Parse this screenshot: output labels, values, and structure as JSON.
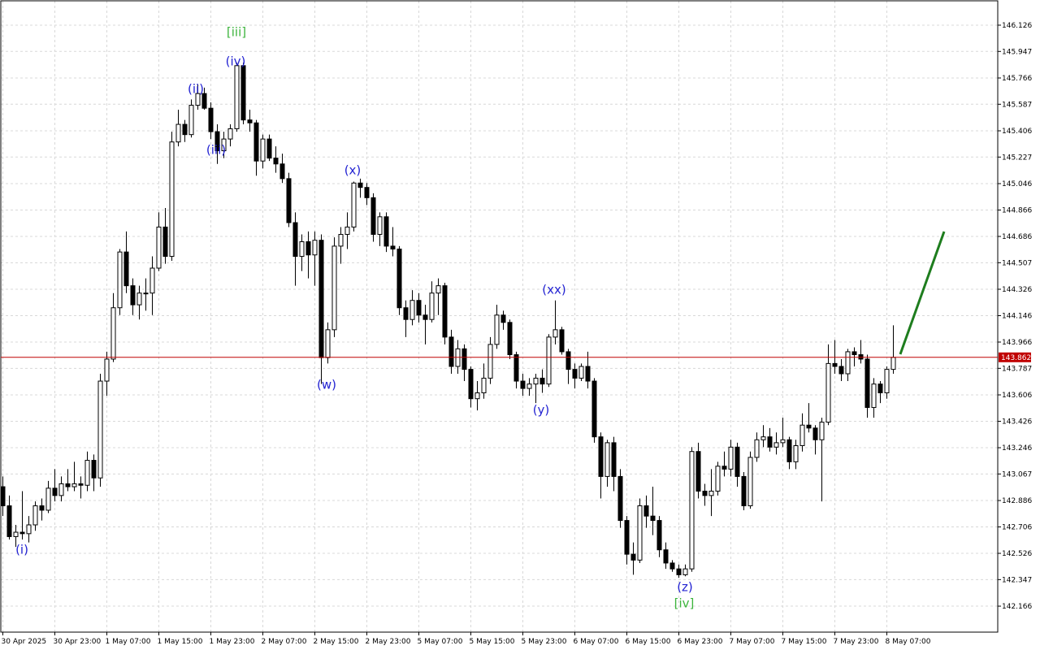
{
  "chart_data": {
    "type": "candlestick",
    "categories": [
      "30 Apr 2025",
      null,
      null,
      null,
      null,
      null,
      null,
      null,
      "30 Apr 23:00",
      null,
      null,
      null,
      null,
      null,
      null,
      null,
      "1 May 07:00",
      null,
      null,
      null,
      null,
      null,
      null,
      null,
      "1 May 15:00",
      null,
      null,
      null,
      null,
      null,
      null,
      null,
      "1 May 23:00",
      null,
      null,
      null,
      null,
      null,
      null,
      null,
      "2 May 07:00",
      null,
      null,
      null,
      null,
      null,
      null,
      null,
      "2 May 15:00",
      null,
      null,
      null,
      null,
      null,
      null,
      null,
      "2 May 23:00",
      null,
      null,
      null,
      null,
      null,
      null,
      null,
      "5 May 07:00",
      null,
      null,
      null,
      null,
      null,
      null,
      null,
      "5 May 15:00",
      null,
      null,
      null,
      null,
      null,
      null,
      null,
      "5 May 23:00",
      null,
      null,
      null,
      null,
      null,
      null,
      null,
      "6 May 07:00",
      null,
      null,
      null,
      null,
      null,
      null,
      null,
      "6 May 15:00",
      null,
      null,
      null,
      null,
      null,
      null,
      null,
      "6 May 23:00",
      null,
      null,
      null,
      null,
      null,
      null,
      null,
      "7 May 07:00",
      null,
      null,
      null,
      null,
      null,
      null,
      null,
      "7 May 15:00",
      null,
      null,
      null,
      null,
      null,
      null,
      null,
      "7 May 23:00",
      null,
      null,
      null,
      null,
      null,
      null,
      null,
      "8 May 07:00",
      null
    ],
    "open": [
      142.98,
      142.85,
      142.64,
      142.67,
      142.66,
      142.72,
      142.85,
      142.82,
      142.97,
      142.92,
      143.0,
      142.98,
      143.0,
      142.99,
      143.16,
      143.04,
      143.7,
      143.85,
      144.2,
      144.58,
      144.35,
      144.22,
      144.3,
      144.3,
      144.47,
      144.75,
      144.55,
      145.33,
      145.45,
      145.38,
      145.58,
      145.66,
      145.56,
      145.4,
      145.27,
      145.35,
      145.42,
      145.85,
      145.48,
      145.46,
      145.2,
      145.35,
      145.22,
      145.18,
      145.08,
      144.78,
      144.55,
      144.65,
      144.56,
      144.66,
      143.86,
      144.05,
      144.62,
      144.7,
      144.75,
      145.05,
      145.02,
      144.95,
      144.7,
      144.82,
      144.62,
      144.6,
      144.2,
      144.12,
      144.25,
      144.15,
      144.12,
      144.3,
      144.35,
      144.0,
      143.8,
      143.92,
      143.78,
      143.58,
      143.62,
      143.72,
      143.95,
      144.15,
      144.1,
      143.88,
      143.7,
      143.65,
      143.68,
      143.72,
      143.68,
      144.0,
      144.05,
      143.9,
      143.78,
      143.72,
      143.8,
      143.7,
      143.32,
      143.05,
      143.28,
      143.05,
      142.75,
      142.52,
      142.48,
      142.85,
      142.78,
      142.75,
      142.55,
      142.46,
      142.42,
      142.38,
      142.42,
      143.22,
      142.95,
      142.92,
      142.95,
      143.12,
      143.1,
      143.25,
      143.05,
      142.85,
      143.18,
      143.3,
      143.32,
      143.25,
      143.28,
      143.3,
      143.15,
      143.26,
      143.4,
      143.38,
      143.3,
      143.42,
      143.82,
      143.8,
      143.75,
      143.9,
      143.88,
      143.85,
      143.52,
      143.68,
      143.62,
      143.78
    ],
    "high": [
      143.05,
      142.92,
      142.72,
      142.95,
      142.78,
      142.88,
      142.9,
      143.02,
      143.1,
      143.05,
      143.1,
      143.15,
      143.05,
      143.22,
      143.2,
      143.75,
      143.9,
      144.3,
      144.6,
      144.72,
      144.4,
      144.35,
      144.4,
      144.55,
      144.85,
      144.88,
      145.4,
      145.55,
      145.48,
      145.62,
      145.72,
      145.7,
      145.6,
      145.45,
      145.4,
      145.45,
      145.87,
      145.87,
      145.55,
      145.48,
      145.38,
      145.38,
      145.3,
      145.25,
      145.12,
      144.85,
      144.7,
      144.72,
      144.72,
      144.7,
      144.1,
      144.68,
      144.75,
      144.85,
      145.06,
      145.08,
      145.05,
      144.98,
      144.85,
      144.85,
      144.75,
      144.62,
      144.25,
      144.32,
      144.3,
      144.22,
      144.38,
      144.4,
      144.37,
      144.05,
      143.98,
      143.95,
      143.8,
      143.7,
      143.82,
      144.0,
      144.22,
      144.18,
      144.12,
      143.9,
      143.75,
      143.72,
      143.75,
      143.78,
      144.02,
      144.25,
      144.07,
      143.92,
      143.82,
      143.82,
      143.9,
      143.72,
      143.35,
      143.3,
      143.32,
      143.1,
      142.78,
      142.6,
      142.9,
      142.92,
      142.98,
      142.78,
      142.6,
      142.48,
      142.45,
      142.45,
      143.25,
      143.28,
      143.0,
      143.1,
      143.15,
      143.22,
      143.3,
      143.28,
      143.08,
      143.22,
      143.35,
      143.4,
      143.38,
      143.35,
      143.45,
      143.32,
      143.3,
      143.48,
      143.55,
      143.4,
      143.45,
      143.95,
      143.98,
      143.85,
      143.92,
      143.93,
      143.98,
      143.88,
      143.72,
      143.7,
      143.8,
      144.08
    ],
    "low": [
      142.78,
      142.62,
      142.57,
      142.62,
      142.6,
      142.68,
      142.75,
      142.8,
      142.88,
      142.88,
      142.95,
      142.95,
      142.9,
      142.95,
      142.95,
      142.98,
      143.6,
      143.83,
      144.15,
      144.3,
      144.15,
      144.12,
      144.18,
      144.15,
      144.45,
      144.5,
      144.52,
      145.3,
      145.33,
      145.36,
      145.55,
      145.55,
      145.35,
      145.18,
      145.22,
      145.3,
      145.4,
      145.45,
      145.4,
      145.1,
      145.15,
      145.2,
      145.12,
      145.05,
      144.75,
      144.35,
      144.45,
      144.4,
      144.35,
      143.68,
      143.82,
      144.0,
      144.5,
      144.6,
      144.72,
      144.95,
      144.9,
      144.65,
      144.62,
      144.58,
      144.55,
      144.15,
      144.0,
      144.08,
      144.1,
      143.95,
      144.1,
      144.15,
      143.95,
      143.75,
      143.75,
      143.7,
      143.52,
      143.5,
      143.58,
      143.68,
      143.92,
      144.05,
      143.85,
      143.65,
      143.6,
      143.6,
      143.55,
      143.62,
      143.66,
      143.95,
      143.88,
      143.68,
      143.65,
      143.7,
      143.65,
      143.28,
      142.9,
      142.98,
      142.95,
      142.7,
      142.45,
      142.38,
      142.46,
      142.7,
      142.65,
      142.5,
      142.42,
      142.4,
      142.36,
      142.37,
      142.4,
      142.9,
      142.85,
      142.78,
      142.92,
      143.05,
      143.05,
      142.98,
      142.82,
      142.83,
      143.15,
      143.25,
      143.22,
      143.2,
      143.25,
      143.1,
      143.1,
      143.22,
      143.35,
      143.2,
      142.88,
      143.4,
      143.75,
      143.7,
      143.7,
      143.8,
      143.82,
      143.45,
      143.45,
      143.55,
      143.58,
      143.75
    ],
    "close": [
      142.85,
      142.64,
      142.67,
      142.66,
      142.72,
      142.85,
      142.82,
      142.97,
      142.92,
      143.0,
      142.98,
      143.0,
      142.99,
      143.16,
      143.04,
      143.7,
      143.85,
      144.2,
      144.58,
      144.35,
      144.22,
      144.3,
      144.3,
      144.47,
      144.75,
      144.55,
      145.33,
      145.45,
      145.38,
      145.58,
      145.66,
      145.56,
      145.4,
      145.27,
      145.35,
      145.42,
      145.85,
      145.48,
      145.46,
      145.2,
      145.35,
      145.22,
      145.18,
      145.08,
      144.78,
      144.55,
      144.65,
      144.56,
      144.66,
      143.86,
      144.05,
      144.62,
      144.7,
      144.75,
      145.05,
      145.02,
      144.95,
      144.7,
      144.82,
      144.62,
      144.6,
      144.2,
      144.12,
      144.25,
      144.15,
      144.12,
      144.3,
      144.35,
      144.0,
      143.8,
      143.92,
      143.78,
      143.58,
      143.62,
      143.72,
      143.95,
      144.15,
      144.1,
      143.88,
      143.7,
      143.65,
      143.68,
      143.72,
      143.68,
      144.0,
      144.05,
      143.9,
      143.78,
      143.72,
      143.8,
      143.7,
      143.32,
      143.05,
      143.28,
      143.05,
      142.75,
      142.52,
      142.48,
      142.85,
      142.78,
      142.75,
      142.55,
      142.46,
      142.42,
      142.38,
      142.42,
      143.22,
      142.95,
      142.92,
      142.95,
      143.12,
      143.1,
      143.25,
      143.05,
      142.85,
      143.18,
      143.3,
      143.32,
      143.25,
      143.28,
      143.3,
      143.15,
      143.26,
      143.4,
      143.38,
      143.3,
      143.42,
      143.82,
      143.8,
      143.75,
      143.9,
      143.88,
      143.85,
      143.52,
      143.68,
      143.62,
      143.78,
      143.862
    ],
    "up_color": "#ffffff",
    "down_color": "#000000",
    "wick_color": "#000000",
    "ylim": [
      141.989,
      146.292
    ],
    "yticks": [
      146.126,
      145.947,
      145.766,
      145.587,
      145.406,
      145.227,
      145.046,
      144.866,
      144.686,
      144.507,
      144.326,
      144.146,
      143.966,
      143.787,
      143.606,
      143.426,
      143.246,
      143.067,
      142.886,
      142.706,
      142.526,
      142.347,
      142.166
    ],
    "grid": true,
    "current_price": 143.862,
    "current_price_color": "#c00000",
    "annotations": [
      {
        "text": "(i)",
        "color": "#2323d2"
      },
      {
        "text": "(ii)",
        "color": "#2323d2"
      },
      {
        "text": "(iii)",
        "color": "#2323d2"
      },
      {
        "text": "(iv)",
        "color": "#2323d2"
      },
      {
        "text": "[iii]",
        "color": "#3cb43c"
      },
      {
        "text": "(w)",
        "color": "#2323d2"
      },
      {
        "text": "(x)",
        "color": "#2323d2"
      },
      {
        "text": "(xx)",
        "color": "#2323d2"
      },
      {
        "text": "(y)",
        "color": "#2323d2"
      },
      {
        "text": "(z)",
        "color": "#2323d2"
      },
      {
        "text": "[iv]",
        "color": "#3cb43c"
      }
    ]
  }
}
